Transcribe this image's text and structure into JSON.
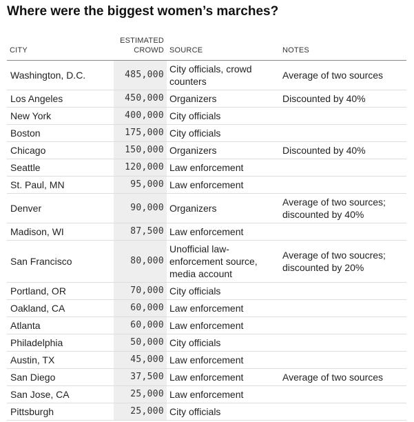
{
  "chart_data": {
    "type": "table",
    "title": "Where were the biggest women’s marches?",
    "columns": [
      {
        "key": "city",
        "label": "CITY"
      },
      {
        "key": "crowd",
        "label_lines": [
          "ESTIMATED",
          "CROWD"
        ]
      },
      {
        "key": "source",
        "label": "SOURCE"
      },
      {
        "key": "notes",
        "label": "NOTES"
      }
    ],
    "rows": [
      {
        "city": "Washington, D.C.",
        "crowd": 485000,
        "crowd_text": "485,000",
        "source": "City officials, crowd counters",
        "notes": "Average of two sources"
      },
      {
        "city": "Los Angeles",
        "crowd": 450000,
        "crowd_text": "450,000",
        "source": "Organizers",
        "notes": "Discounted by 40%"
      },
      {
        "city": "New York",
        "crowd": 400000,
        "crowd_text": "400,000",
        "source": "City officials",
        "notes": ""
      },
      {
        "city": "Boston",
        "crowd": 175000,
        "crowd_text": "175,000",
        "source": "City officials",
        "notes": ""
      },
      {
        "city": "Chicago",
        "crowd": 150000,
        "crowd_text": "150,000",
        "source": "Organizers",
        "notes": "Discounted by 40%"
      },
      {
        "city": "Seattle",
        "crowd": 120000,
        "crowd_text": "120,000",
        "source": "Law enforcement",
        "notes": ""
      },
      {
        "city": "St. Paul, MN",
        "crowd": 95000,
        "crowd_text": "95,000",
        "source": "Law enforcement",
        "notes": ""
      },
      {
        "city": "Denver",
        "crowd": 90000,
        "crowd_text": "90,000",
        "source": "Organizers",
        "notes": "Average of two sources; discounted by 40%"
      },
      {
        "city": "Madison, WI",
        "crowd": 87500,
        "crowd_text": "87,500",
        "source": "Law enforcement",
        "notes": ""
      },
      {
        "city": "San Francisco",
        "crowd": 80000,
        "crowd_text": "80,000",
        "source": "Unofficial law-enforcement source, media account",
        "notes": "Average of two soucres; discounted by 20%"
      },
      {
        "city": "Portland, OR",
        "crowd": 70000,
        "crowd_text": "70,000",
        "source": "City officials",
        "notes": ""
      },
      {
        "city": "Oakland, CA",
        "crowd": 60000,
        "crowd_text": "60,000",
        "source": "Law enforcement",
        "notes": ""
      },
      {
        "city": "Atlanta",
        "crowd": 60000,
        "crowd_text": "60,000",
        "source": "Law enforcement",
        "notes": ""
      },
      {
        "city": "Philadelphia",
        "crowd": 50000,
        "crowd_text": "50,000",
        "source": "City officials",
        "notes": ""
      },
      {
        "city": "Austin, TX",
        "crowd": 45000,
        "crowd_text": "45,000",
        "source": "Law enforcement",
        "notes": ""
      },
      {
        "city": "San Diego",
        "crowd": 37500,
        "crowd_text": "37,500",
        "source": "Law enforcement",
        "notes": "Average of two sources"
      },
      {
        "city": "San Jose, CA",
        "crowd": 25000,
        "crowd_text": "25,000",
        "source": "Law enforcement",
        "notes": ""
      },
      {
        "city": "Pittsburgh",
        "crowd": 25000,
        "crowd_text": "25,000",
        "source": "City officials",
        "notes": ""
      }
    ]
  }
}
